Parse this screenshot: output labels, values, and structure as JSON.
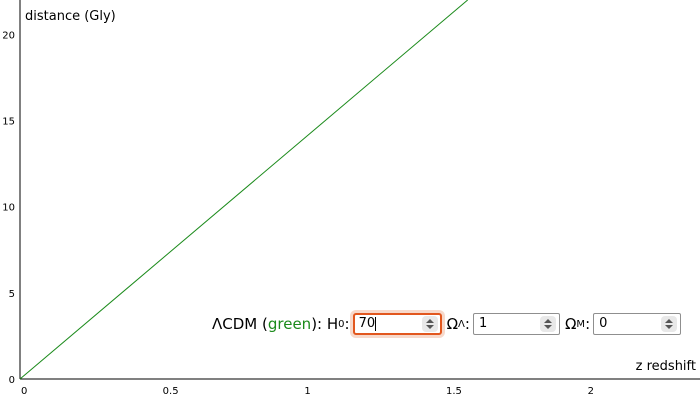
{
  "chart_data": {
    "type": "line",
    "xlabel": "z redshift",
    "ylabel": "distance (Gly)",
    "xlim": [
      0,
      2.4
    ],
    "ylim": [
      0,
      22
    ],
    "x_ticks": [
      "0",
      "0.5",
      "1",
      "1.5",
      "2"
    ],
    "y_ticks": [
      "0",
      "5",
      "10",
      "15",
      "20"
    ],
    "grid": false,
    "series": [
      {
        "color": "#1a8a1a",
        "x": [
          0,
          1.58
        ],
        "y": [
          0,
          22.0
        ]
      }
    ]
  },
  "controls": {
    "model_label": "ΛCDM (",
    "model_color_word": "green",
    "model_close": "): H",
    "h0_sub": "0",
    "colon": ":",
    "h0_value": "70",
    "omega_lambda_symbol": "Ω",
    "omega_lambda_sub": "Λ",
    "omega_lambda_value": "1",
    "omega_m_symbol": "Ω",
    "omega_m_sub": "M",
    "omega_m_value": "0"
  }
}
